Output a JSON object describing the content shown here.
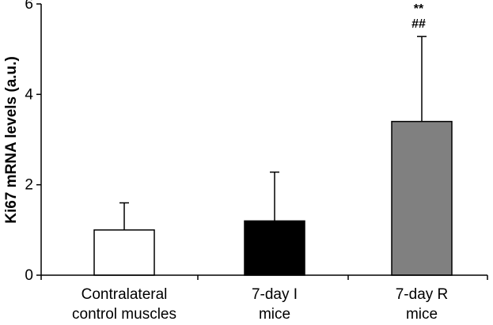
{
  "chart_data": {
    "type": "bar",
    "title": "",
    "xlabel": "",
    "ylabel": "Ki67 mRNA levels (a.u.)",
    "ylim": [
      0,
      6
    ],
    "yticks": [
      "0",
      "2",
      "4",
      "6"
    ],
    "grid": false,
    "legend": "none",
    "categories": [
      [
        "Contralateral",
        "control muscles"
      ],
      [
        "7-day I",
        "mice"
      ],
      [
        "7-day R",
        "mice"
      ]
    ],
    "values": [
      1.0,
      1.2,
      3.4
    ],
    "error_upper": [
      0.6,
      1.08,
      1.88
    ],
    "bar_colors": [
      "#ffffff",
      "#000000",
      "#808080"
    ],
    "annotations": [
      {
        "category_index": 2,
        "lines": [
          "**",
          "##"
        ]
      }
    ]
  }
}
